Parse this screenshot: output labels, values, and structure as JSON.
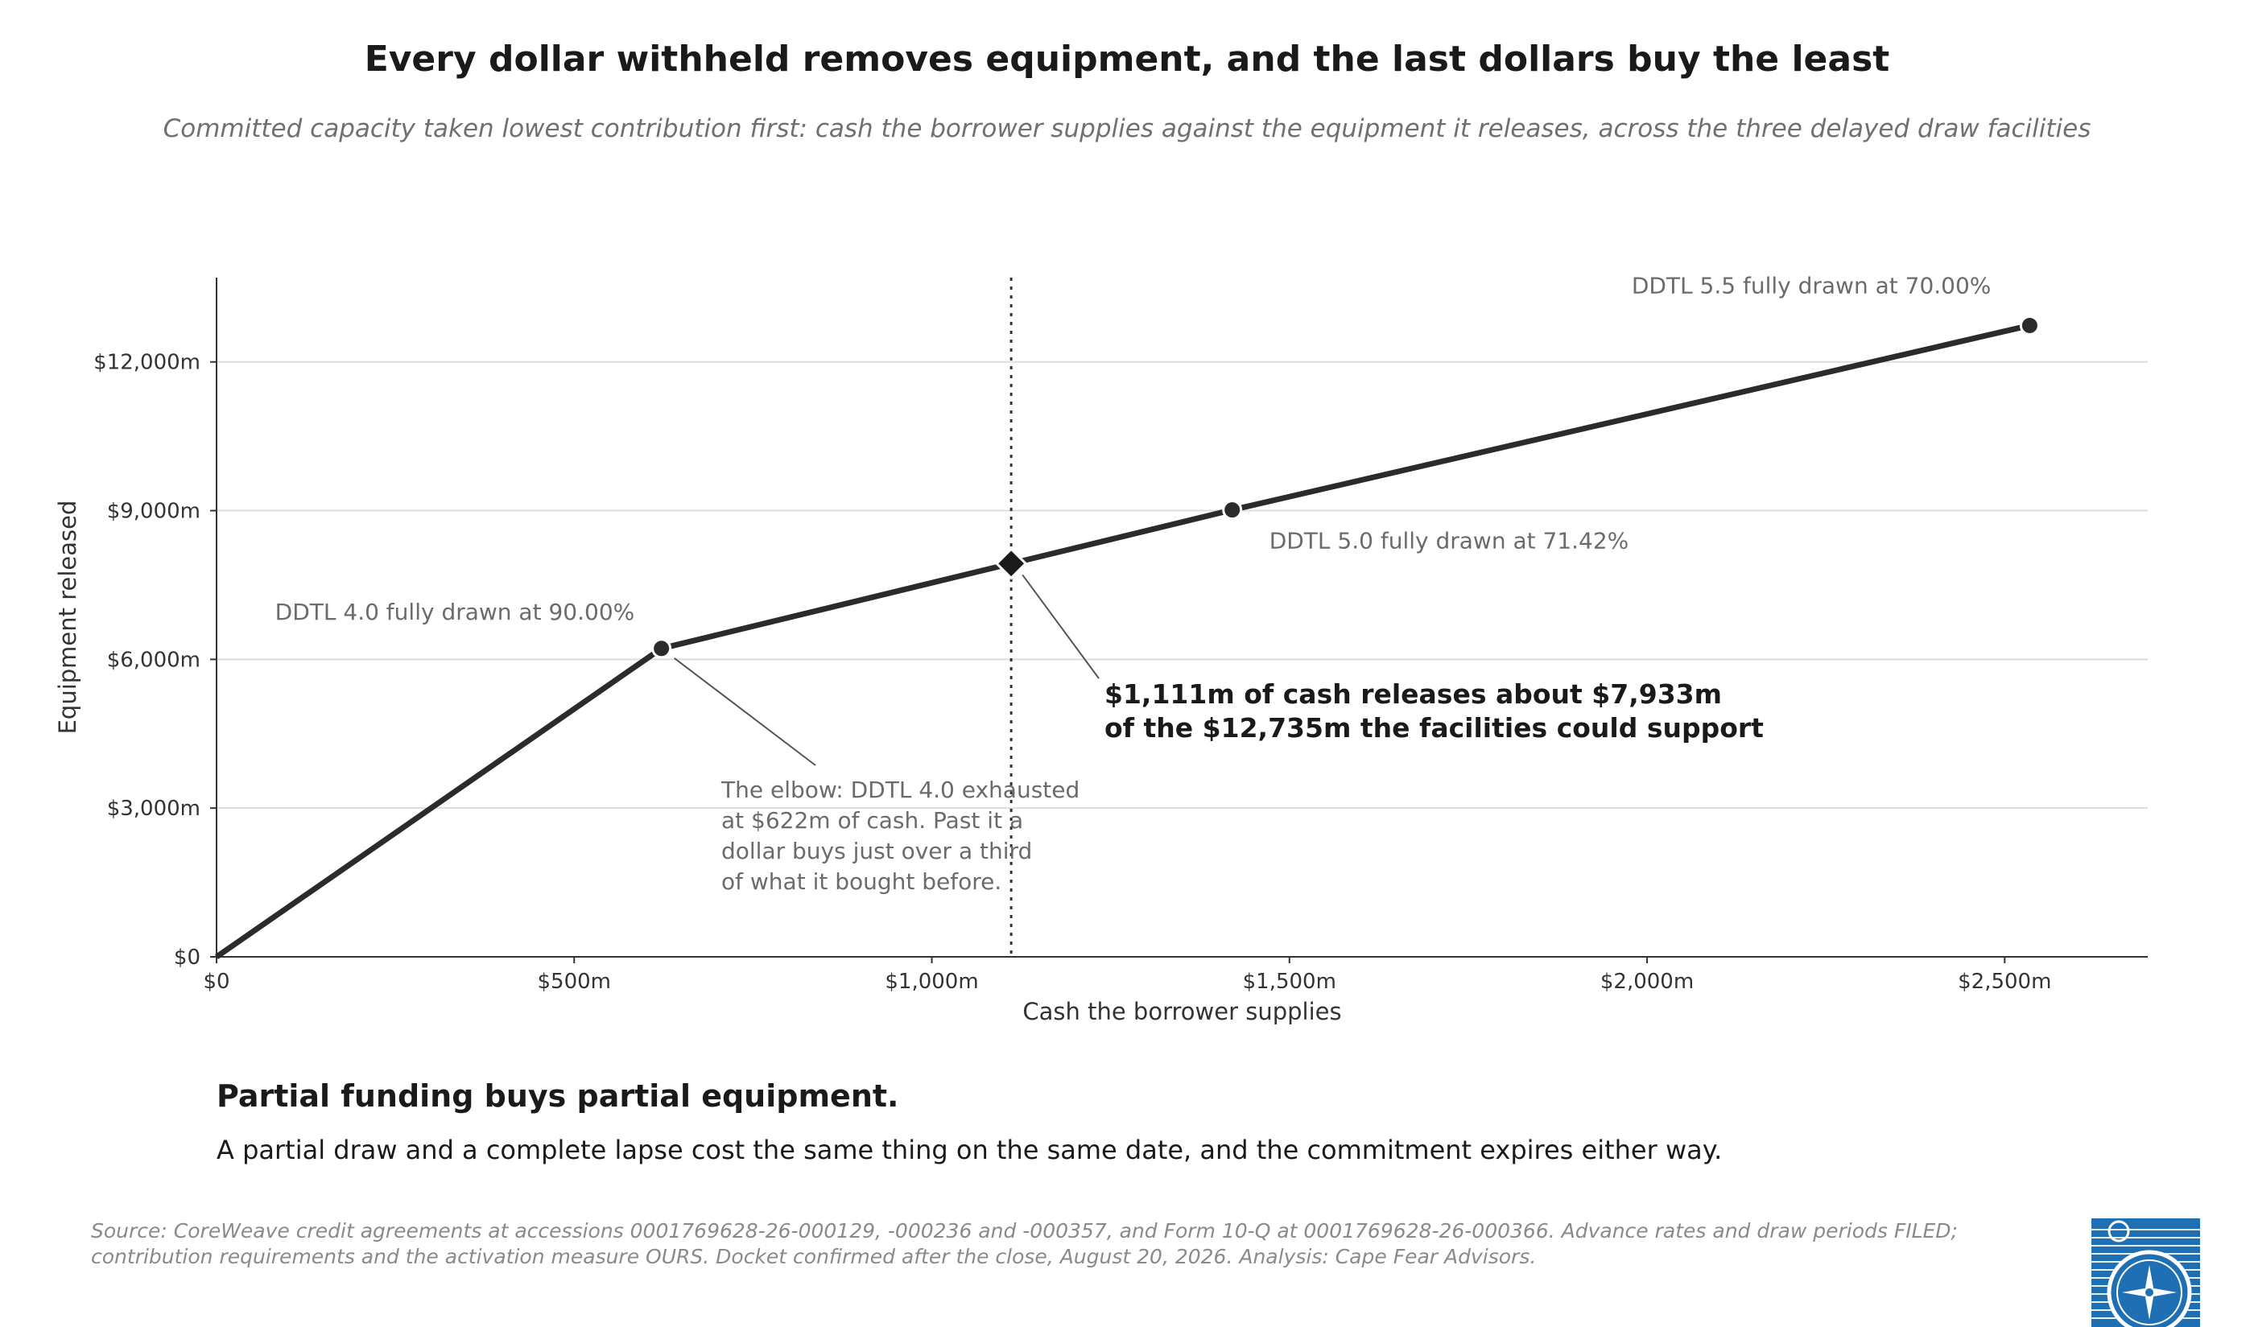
{
  "title": "Every dollar withheld removes equipment, and the last dollars buy the least",
  "subtitle": "Committed capacity taken lowest contribution first: cash the borrower supplies against the equipment it releases, across the three delayed draw facilities",
  "chart_data": {
    "type": "line",
    "xlabel": "Cash the borrower supplies",
    "ylabel": "Equipment released",
    "xlim": [
      0,
      2700
    ],
    "ylim": [
      0,
      13700
    ],
    "x_ticks": [
      0,
      500,
      1000,
      1500,
      2000,
      2500
    ],
    "x_tick_labels": [
      "$0",
      "$500m",
      "$1,000m",
      "$1,500m",
      "$2,000m",
      "$2,500m"
    ],
    "y_ticks": [
      0,
      3000,
      6000,
      9000,
      12000
    ],
    "y_tick_labels": [
      "$0",
      "$3,000m",
      "$6,000m",
      "$9,000m",
      "$12,000m"
    ],
    "grid": "horizontal",
    "series": [
      {
        "x": [
          0,
          622,
          1420,
          2535
        ],
        "y": [
          0,
          6220,
          9015,
          12735
        ]
      }
    ],
    "points": [
      {
        "label": "DDTL 4.0 fully drawn at 90.00%",
        "x": 622,
        "y": 6220
      },
      {
        "label": "DDTL 5.0 fully drawn at 71.42%",
        "x": 1420,
        "y": 9015
      },
      {
        "label": "DDTL 5.5 fully drawn at 70.00%",
        "x": 2535,
        "y": 12735
      }
    ],
    "marker": {
      "x": 1111,
      "y": 7933
    },
    "vline_x": 1111,
    "annotations": {
      "elbow": [
        "The elbow: DDTL 4.0 exhausted",
        "at $622m of cash. Past it a",
        "dollar buys just over a third",
        "of what it bought before."
      ],
      "callout": [
        "$1,111m of cash releases about $7,933m",
        "of the $12,735m the facilities could support"
      ]
    },
    "colors": {
      "line": "#2b2b2b",
      "grid": "#dddddd",
      "axis": "#333333",
      "annotation": "#6b6b6b"
    }
  },
  "takeaway": {
    "headline": "Partial funding buys partial equipment.",
    "body": "A partial draw and a complete lapse cost the same thing on the same date, and the commitment expires either way."
  },
  "source": "Source: CoreWeave credit agreements at accessions 0001769628-26-000129, -000236 and -000357, and Form 10-Q at 0001769628-26-000366. Advance rates and draw periods FILED; contribution requirements and the activation measure OURS. Docket confirmed after the close, August 20, 2026. Analysis: Cape Fear Advisors.",
  "logo": {
    "icon": "compass-icon",
    "color": "#1f6fb5"
  }
}
